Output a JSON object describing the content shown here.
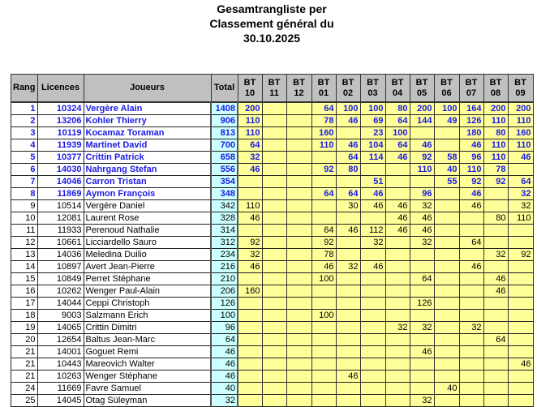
{
  "title": {
    "line1": "Gesamtrangliste per",
    "line2": "Classement général du",
    "line3": "30.10.2025"
  },
  "colors": {
    "highlight_text": "#1a1ae6",
    "header_bg": "#c0c0c0",
    "total_bg": "#ccffff",
    "score_bg": "#ffff99"
  },
  "headers": {
    "rang": "Rang",
    "licences": "Licences",
    "joueurs": "Joueurs",
    "total": "Total",
    "bt": [
      {
        "l1": "BT",
        "l2": "10"
      },
      {
        "l1": "BT",
        "l2": "11"
      },
      {
        "l1": "BT",
        "l2": "12"
      },
      {
        "l1": "BT",
        "l2": "01"
      },
      {
        "l1": "BT",
        "l2": "02"
      },
      {
        "l1": "BT",
        "l2": "03"
      },
      {
        "l1": "BT",
        "l2": "04"
      },
      {
        "l1": "BT",
        "l2": "05"
      },
      {
        "l1": "BT",
        "l2": "06"
      },
      {
        "l1": "BT",
        "l2": "07"
      },
      {
        "l1": "BT",
        "l2": "08"
      },
      {
        "l1": "BT",
        "l2": "09"
      }
    ]
  },
  "rows": [
    {
      "rang": "1",
      "lic": "10324",
      "name": "Vergère Alain",
      "total": "1408",
      "top": true,
      "scores": [
        "200",
        "",
        "",
        "64",
        "100",
        "100",
        "80",
        "200",
        "100",
        "164",
        "200",
        "200"
      ]
    },
    {
      "rang": "2",
      "lic": "13206",
      "name": "Kohler Thierry",
      "total": "906",
      "top": true,
      "scores": [
        "110",
        "",
        "",
        "78",
        "46",
        "69",
        "64",
        "144",
        "49",
        "126",
        "110",
        "110"
      ]
    },
    {
      "rang": "3",
      "lic": "10119",
      "name": "Kocamaz Toraman",
      "total": "813",
      "top": true,
      "scores": [
        "110",
        "",
        "",
        "160",
        "",
        "23",
        "100",
        "",
        "",
        "180",
        "80",
        "160"
      ]
    },
    {
      "rang": "4",
      "lic": "11939",
      "name": "Martinet David",
      "total": "700",
      "top": true,
      "scores": [
        "64",
        "",
        "",
        "110",
        "46",
        "104",
        "64",
        "46",
        "",
        "46",
        "110",
        "110"
      ]
    },
    {
      "rang": "5",
      "lic": "10377",
      "name": "Crittin Patrick",
      "total": "658",
      "top": true,
      "scores": [
        "32",
        "",
        "",
        "",
        "64",
        "114",
        "46",
        "92",
        "58",
        "96",
        "110",
        "46"
      ]
    },
    {
      "rang": "6",
      "lic": "14030",
      "name": "Nahrgang Stefan",
      "total": "556",
      "top": true,
      "scores": [
        "46",
        "",
        "",
        "92",
        "80",
        "",
        "",
        "110",
        "40",
        "110",
        "78",
        ""
      ]
    },
    {
      "rang": "7",
      "lic": "14046",
      "name": "Carron Tristan",
      "total": "354",
      "top": true,
      "scores": [
        "",
        "",
        "",
        "",
        "",
        "51",
        "",
        "",
        "55",
        "92",
        "92",
        "64"
      ]
    },
    {
      "rang": "8",
      "lic": "11869",
      "name": "Aymon François",
      "total": "348",
      "top": true,
      "scores": [
        "",
        "",
        "",
        "64",
        "64",
        "46",
        "",
        "96",
        "",
        "46",
        "",
        "32"
      ]
    },
    {
      "rang": "9",
      "lic": "10514",
      "name": "Vergère Daniel",
      "total": "342",
      "top": false,
      "scores": [
        "110",
        "",
        "",
        "",
        "30",
        "46",
        "46",
        "32",
        "",
        "46",
        "",
        "32"
      ]
    },
    {
      "rang": "10",
      "lic": "12081",
      "name": "Laurent Rose",
      "total": "328",
      "top": false,
      "scores": [
        "46",
        "",
        "",
        "",
        "",
        "",
        "46",
        "46",
        "",
        "",
        "80",
        "110"
      ]
    },
    {
      "rang": "11",
      "lic": "11933",
      "name": "Perenoud Nathalie",
      "total": "314",
      "top": false,
      "scores": [
        "",
        "",
        "",
        "64",
        "46",
        "112",
        "46",
        "46",
        "",
        "",
        "",
        ""
      ]
    },
    {
      "rang": "12",
      "lic": "10661",
      "name": "Licciardello Sauro",
      "total": "312",
      "top": false,
      "scores": [
        "92",
        "",
        "",
        "92",
        "",
        "32",
        "",
        "32",
        "",
        "64",
        "",
        ""
      ]
    },
    {
      "rang": "13",
      "lic": "14036",
      "name": "Meledina Duilio",
      "total": "234",
      "top": false,
      "scores": [
        "32",
        "",
        "",
        "78",
        "",
        "",
        "",
        "",
        "",
        "",
        "32",
        "92"
      ]
    },
    {
      "rang": "14",
      "lic": "10897",
      "name": "Avert Jean-Pierre",
      "total": "216",
      "top": false,
      "scores": [
        "46",
        "",
        "",
        "46",
        "32",
        "46",
        "",
        "",
        "",
        "46",
        "",
        ""
      ]
    },
    {
      "rang": "15",
      "lic": "10849",
      "name": "Perret Stéphane",
      "total": "210",
      "top": false,
      "scores": [
        "",
        "",
        "",
        "100",
        "",
        "",
        "",
        "64",
        "",
        "",
        "46",
        ""
      ]
    },
    {
      "rang": "16",
      "lic": "10262",
      "name": "Wenger Paul-Alain",
      "total": "206",
      "top": false,
      "scores": [
        "160",
        "",
        "",
        "",
        "",
        "",
        "",
        "",
        "",
        "",
        "46",
        ""
      ]
    },
    {
      "rang": "17",
      "lic": "14044",
      "name": "Ceppi Christoph",
      "total": "126",
      "top": false,
      "scores": [
        "",
        "",
        "",
        "",
        "",
        "",
        "",
        "126",
        "",
        "",
        "",
        ""
      ]
    },
    {
      "rang": "18",
      "lic": "9003",
      "name": "Salzmann Erich",
      "total": "100",
      "top": false,
      "scores": [
        "",
        "",
        "",
        "100",
        "",
        "",
        "",
        "",
        "",
        "",
        "",
        ""
      ]
    },
    {
      "rang": "19",
      "lic": "14065",
      "name": "Crittin Dimitri",
      "total": "96",
      "top": false,
      "scores": [
        "",
        "",
        "",
        "",
        "",
        "",
        "32",
        "32",
        "",
        "32",
        "",
        ""
      ]
    },
    {
      "rang": "20",
      "lic": "12654",
      "name": "Baltus Jean-Marc",
      "total": "64",
      "top": false,
      "scores": [
        "",
        "",
        "",
        "",
        "",
        "",
        "",
        "",
        "",
        "",
        "64",
        ""
      ]
    },
    {
      "rang": "21",
      "lic": "14001",
      "name": "Goguet Remi",
      "total": "46",
      "top": false,
      "scores": [
        "",
        "",
        "",
        "",
        "",
        "",
        "",
        "46",
        "",
        "",
        "",
        ""
      ]
    },
    {
      "rang": "21",
      "lic": "10443",
      "name": "Mareovich Walter",
      "total": "46",
      "top": false,
      "scores": [
        "",
        "",
        "",
        "",
        "",
        "",
        "",
        "",
        "",
        "",
        "",
        "46"
      ]
    },
    {
      "rang": "21",
      "lic": "10263",
      "name": "Wenger Stéphane",
      "total": "46",
      "top": false,
      "scores": [
        "",
        "",
        "",
        "",
        "46",
        "",
        "",
        "",
        "",
        "",
        "",
        ""
      ]
    },
    {
      "rang": "24",
      "lic": "11669",
      "name": "Favre Samuel",
      "total": "40",
      "top": false,
      "scores": [
        "",
        "",
        "",
        "",
        "",
        "",
        "",
        "",
        "40",
        "",
        "",
        ""
      ]
    },
    {
      "rang": "25",
      "lic": "14045",
      "name": "Otag Süleyman",
      "total": "32",
      "top": false,
      "scores": [
        "",
        "",
        "",
        "",
        "",
        "",
        "",
        "32",
        "",
        "",
        "",
        ""
      ]
    }
  ]
}
